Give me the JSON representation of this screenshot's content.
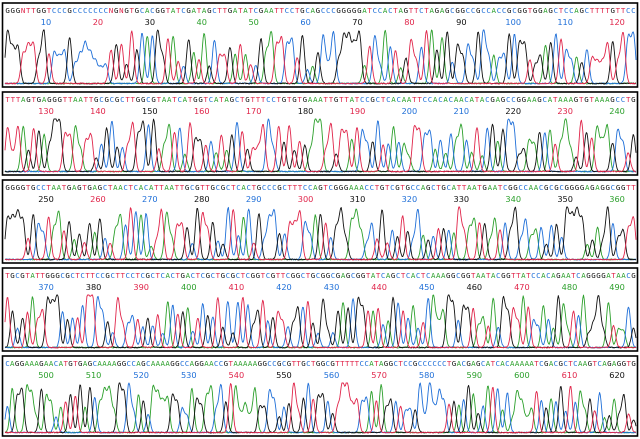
{
  "chart_data": {
    "type": "line",
    "title": "",
    "xlabel": "",
    "ylabel": "",
    "grid": false,
    "legend": "none",
    "base_colors": {
      "A": "#2ca02c",
      "C": "#1f6fd8",
      "G": "#111111",
      "T": "#e0254a",
      "N": "#e0254a"
    },
    "panels": [
      {
        "sequence": "GGGNTTGGTCCCGCCCCCCCNGNGTGCACGGTATCGATAGCTTGATATCGAATTCCTGCAGCCCGGGGGATCCACTAGTTCTAGAGCGGCCGCCACCGCGGTGGAGCTCCAGCTTTTGTTCC",
        "ticks": [
          {
            "label": "10",
            "base": "C"
          },
          {
            "label": "20",
            "base": "T"
          },
          {
            "label": "30",
            "base": "G"
          },
          {
            "label": "40",
            "base": "A"
          },
          {
            "label": "50",
            "base": "A"
          },
          {
            "label": "60",
            "base": "C"
          },
          {
            "label": "70",
            "base": "G"
          },
          {
            "label": "80",
            "base": "T"
          },
          {
            "label": "90",
            "base": "G"
          },
          {
            "label": "100",
            "base": "C"
          },
          {
            "label": "110",
            "base": "C"
          },
          {
            "label": "120",
            "base": "T"
          }
        ]
      },
      {
        "sequence": "TTTAGTGAGGGTTAATTGCGCGCTTGGCGTAATCATGGTCATAGCTGTTTCCTGTGTGAAATTGTTATCCGCTCACAATTCCACACAACATACGAGCCGGAAGCATAAAGTGTAAAGCCTG",
        "ticks": [
          {
            "label": "130",
            "base": "T"
          },
          {
            "label": "140",
            "base": "T"
          },
          {
            "label": "150",
            "base": "G"
          },
          {
            "label": "160",
            "base": "T"
          },
          {
            "label": "170",
            "base": "T"
          },
          {
            "label": "180",
            "base": "G"
          },
          {
            "label": "190",
            "base": "T"
          },
          {
            "label": "200",
            "base": "C"
          },
          {
            "label": "210",
            "base": "C"
          },
          {
            "label": "220",
            "base": "G"
          },
          {
            "label": "230",
            "base": "T"
          },
          {
            "label": "240",
            "base": "A"
          }
        ]
      },
      {
        "sequence": "GGGGTGCCTAATGAGTGAGCTAACTCACATTAATTGCGTTGCGCTCACTGCCCGCTTTCCAGTCGGGAAACCTGTCGTGCCAGCTGCATTAATGAATCGGCCAACGCGCGGGGAGAGGCGGTT",
        "ticks": [
          {
            "label": "250",
            "base": "G"
          },
          {
            "label": "260",
            "base": "T"
          },
          {
            "label": "270",
            "base": "C"
          },
          {
            "label": "280",
            "base": "G"
          },
          {
            "label": "290",
            "base": "C"
          },
          {
            "label": "300",
            "base": "T"
          },
          {
            "label": "310",
            "base": "G"
          },
          {
            "label": "320",
            "base": "C"
          },
          {
            "label": "330",
            "base": "G"
          },
          {
            "label": "340",
            "base": "A"
          },
          {
            "label": "350",
            "base": "G"
          },
          {
            "label": "360",
            "base": "A"
          }
        ]
      },
      {
        "sequence": "TGCGTATTGGGCGCTCTTCCGCTTCCTCGCTCACTGACTCGCTGCGCTCGGTCGTTCGGCTGCGGCGAGCGGTATCAGCTCACTCAAAGGCGGTAATACGGTTATCCACAGAATCAGGGGATAACG",
        "ticks": [
          {
            "label": "370",
            "base": "C"
          },
          {
            "label": "380",
            "base": "G"
          },
          {
            "label": "390",
            "base": "T"
          },
          {
            "label": "400",
            "base": "A"
          },
          {
            "label": "410",
            "base": "T"
          },
          {
            "label": "420",
            "base": "C"
          },
          {
            "label": "430",
            "base": "C"
          },
          {
            "label": "440",
            "base": "T"
          },
          {
            "label": "450",
            "base": "C"
          },
          {
            "label": "460",
            "base": "G"
          },
          {
            "label": "470",
            "base": "T"
          },
          {
            "label": "480",
            "base": "A"
          },
          {
            "label": "490",
            "base": "A"
          }
        ]
      },
      {
        "sequence": "CAGGAAAGAACATGTGAGCAAAAGGCCAGCAAAAGGCCAGGAACCGTAAAAAGGCCGCGTTGCTGGCGTTTTTCCATAGGCTCCGCCCCCCTGACGAGCATCACAAAAATCGACGCTCAAGTCAGAGGTG",
        "ticks": [
          {
            "label": "500",
            "base": "A"
          },
          {
            "label": "510",
            "base": "A"
          },
          {
            "label": "520",
            "base": "C"
          },
          {
            "label": "530",
            "base": "C"
          },
          {
            "label": "540",
            "base": "T"
          },
          {
            "label": "550",
            "base": "G"
          },
          {
            "label": "560",
            "base": "C"
          },
          {
            "label": "570",
            "base": "T"
          },
          {
            "label": "580",
            "base": "C"
          },
          {
            "label": "590",
            "base": "A"
          },
          {
            "label": "600",
            "base": "A"
          },
          {
            "label": "610",
            "base": "T"
          },
          {
            "label": "620",
            "base": "G"
          }
        ]
      }
    ]
  }
}
